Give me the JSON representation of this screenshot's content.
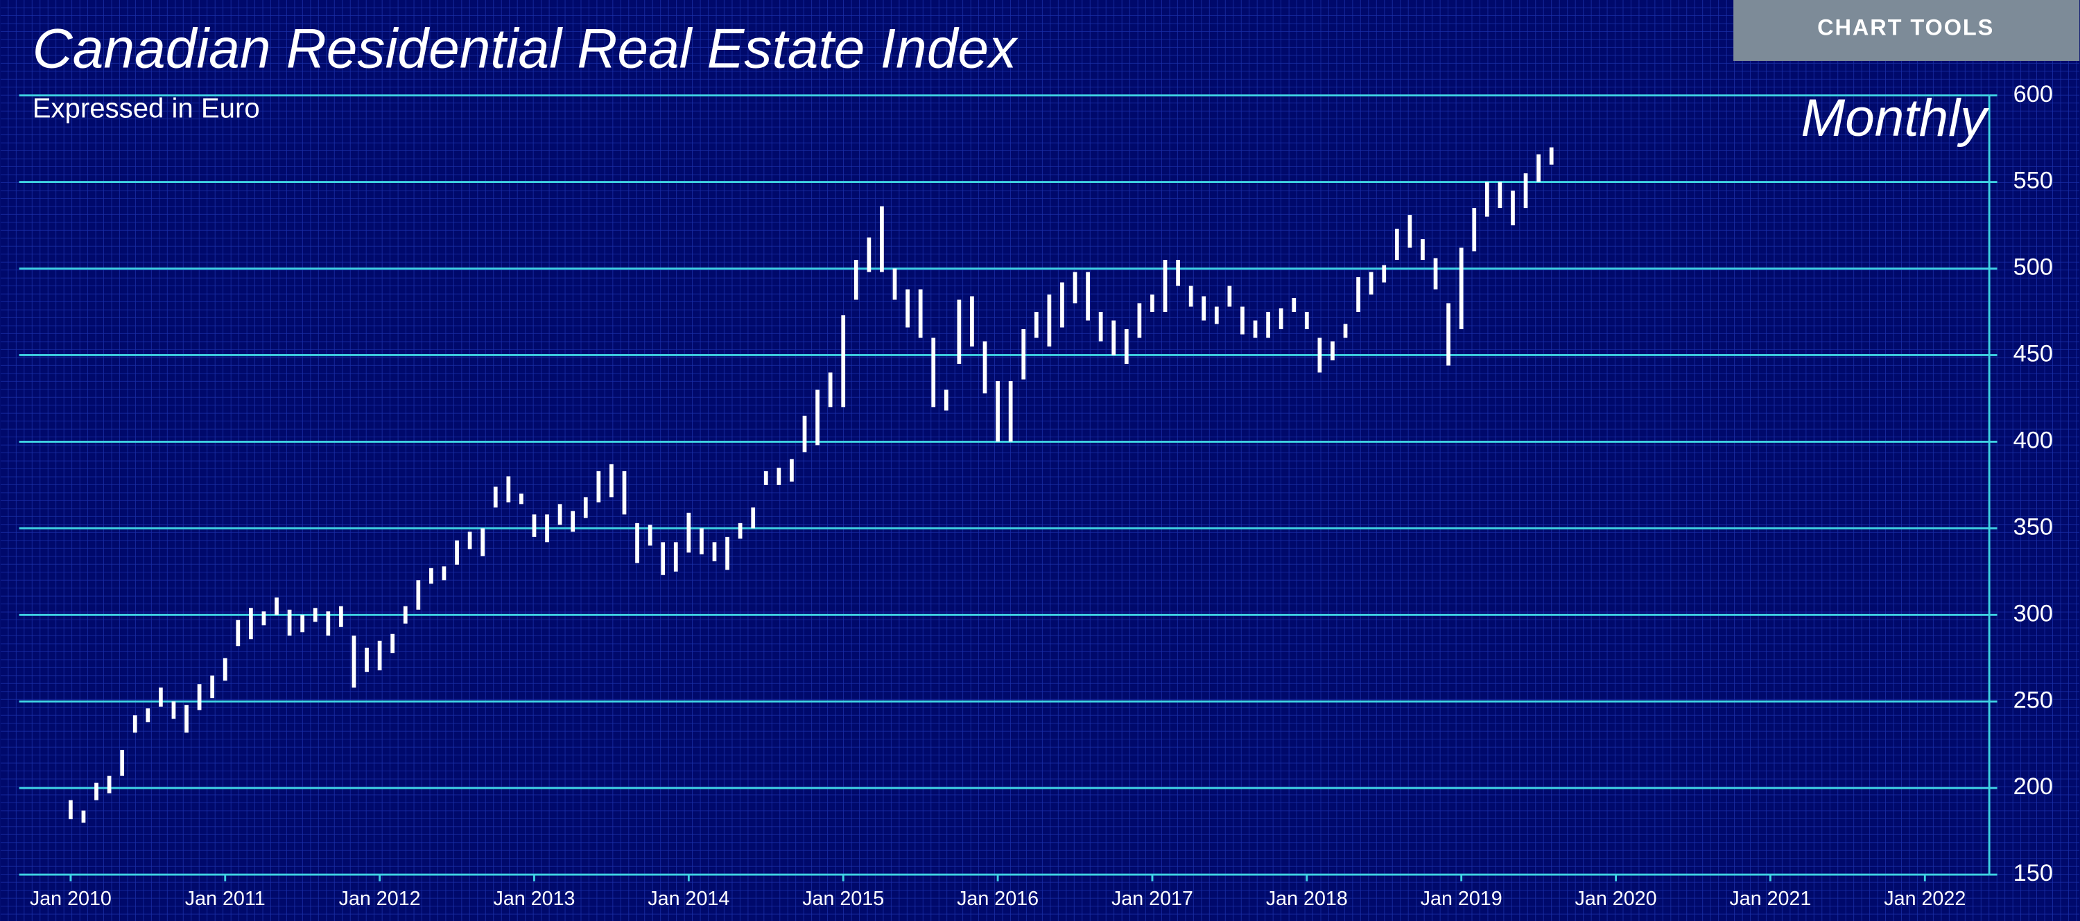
{
  "chart_data": {
    "type": "range-bar",
    "title": "Canadian Residential Real Estate Index",
    "subtitle": "Expressed in Euro",
    "frequency_label": "Monthly",
    "button": "CHART TOOLS",
    "x": [
      "2010-01",
      "2010-02",
      "2010-03",
      "2010-04",
      "2010-05",
      "2010-06",
      "2010-07",
      "2010-08",
      "2010-09",
      "2010-10",
      "2010-11",
      "2010-12",
      "2011-01",
      "2011-02",
      "2011-03",
      "2011-04",
      "2011-05",
      "2011-06",
      "2011-07",
      "2011-08",
      "2011-09",
      "2011-10",
      "2011-11",
      "2011-12",
      "2012-01",
      "2012-02",
      "2012-03",
      "2012-04",
      "2012-05",
      "2012-06",
      "2012-07",
      "2012-08",
      "2012-09",
      "2012-10",
      "2012-11",
      "2012-12",
      "2013-01",
      "2013-02",
      "2013-03",
      "2013-04",
      "2013-05",
      "2013-06",
      "2013-07",
      "2013-08",
      "2013-09",
      "2013-10",
      "2013-11",
      "2013-12",
      "2014-01",
      "2014-02",
      "2014-03",
      "2014-04",
      "2014-05",
      "2014-06",
      "2014-07",
      "2014-08",
      "2014-09",
      "2014-10",
      "2014-11",
      "2014-12",
      "2015-01",
      "2015-02",
      "2015-03",
      "2015-04",
      "2015-05",
      "2015-06",
      "2015-07",
      "2015-08",
      "2015-09",
      "2015-10",
      "2015-11",
      "2015-12",
      "2016-01",
      "2016-02",
      "2016-03",
      "2016-04",
      "2016-05",
      "2016-06",
      "2016-07",
      "2016-08",
      "2016-09",
      "2016-10",
      "2016-11",
      "2016-12",
      "2017-01",
      "2017-02",
      "2017-03",
      "2017-04",
      "2017-05",
      "2017-06",
      "2017-07",
      "2017-08",
      "2017-09",
      "2017-10",
      "2017-11",
      "2017-12",
      "2018-01",
      "2018-02",
      "2018-03",
      "2018-04",
      "2018-05",
      "2018-06",
      "2018-07",
      "2018-08",
      "2018-09",
      "2018-10",
      "2018-11",
      "2018-12",
      "2019-01",
      "2019-02",
      "2019-03",
      "2019-04",
      "2019-05",
      "2019-06",
      "2019-07",
      "2019-08"
    ],
    "high": [
      193,
      187,
      203,
      207,
      222,
      242,
      246,
      258,
      250,
      248,
      260,
      265,
      275,
      297,
      304,
      302,
      310,
      303,
      300,
      304,
      302,
      305,
      288,
      281,
      285,
      289,
      305,
      320,
      327,
      328,
      343,
      348,
      350,
      374,
      380,
      370,
      358,
      358,
      364,
      360,
      368,
      383,
      387,
      383,
      353,
      352,
      342,
      342,
      359,
      350,
      342,
      345,
      353,
      362,
      383,
      385,
      390,
      415,
      430,
      440,
      473,
      505,
      518,
      536,
      500,
      488,
      488,
      460,
      430,
      482,
      484,
      458,
      435,
      435,
      465,
      475,
      485,
      492,
      498,
      498,
      475,
      470,
      465,
      480,
      485,
      505,
      505,
      490,
      484,
      478,
      490,
      478,
      470,
      475,
      477,
      483,
      475,
      460,
      458,
      468,
      495,
      498,
      502,
      523,
      531,
      517,
      506,
      480,
      512,
      535,
      550,
      550,
      545,
      555,
      566,
      570
    ],
    "low": [
      182,
      180,
      193,
      197,
      207,
      232,
      238,
      247,
      240,
      232,
      245,
      252,
      262,
      282,
      286,
      294,
      300,
      288,
      290,
      296,
      288,
      293,
      258,
      267,
      268,
      278,
      295,
      303,
      318,
      320,
      329,
      338,
      334,
      362,
      365,
      364,
      345,
      342,
      352,
      348,
      356,
      365,
      368,
      358,
      330,
      340,
      323,
      325,
      336,
      335,
      331,
      326,
      344,
      350,
      375,
      375,
      377,
      394,
      398,
      420,
      420,
      482,
      498,
      498,
      482,
      466,
      460,
      420,
      418,
      445,
      455,
      428,
      400,
      400,
      436,
      460,
      455,
      466,
      480,
      470,
      458,
      450,
      445,
      460,
      475,
      475,
      490,
      478,
      470,
      468,
      478,
      462,
      460,
      460,
      465,
      475,
      465,
      440,
      447,
      460,
      475,
      485,
      492,
      505,
      512,
      505,
      488,
      444,
      465,
      510,
      530,
      535,
      525,
      535,
      550,
      560
    ],
    "color": "#ffffff",
    "grid_color": "#3fd3e3",
    "xlim": [
      "2009-09",
      "2022-06"
    ],
    "xticks": [
      {
        "value": "2010-01",
        "label": "Jan 2010"
      },
      {
        "value": "2011-01",
        "label": "Jan 2011"
      },
      {
        "value": "2012-01",
        "label": "Jan 2012"
      },
      {
        "value": "2013-01",
        "label": "Jan 2013"
      },
      {
        "value": "2014-01",
        "label": "Jan 2014"
      },
      {
        "value": "2015-01",
        "label": "Jan 2015"
      },
      {
        "value": "2016-01",
        "label": "Jan 2016"
      },
      {
        "value": "2017-01",
        "label": "Jan 2017"
      },
      {
        "value": "2018-01",
        "label": "Jan 2018"
      },
      {
        "value": "2019-01",
        "label": "Jan 2019"
      },
      {
        "value": "2020-01",
        "label": "Jan 2020"
      },
      {
        "value": "2021-01",
        "label": "Jan 2021"
      },
      {
        "value": "2022-01",
        "label": "Jan 2022"
      }
    ],
    "ylim": [
      150,
      600
    ],
    "yticks": [
      150,
      200,
      250,
      300,
      350,
      400,
      450,
      500,
      550,
      600
    ],
    "y_axis_side": "right",
    "grid": true
  }
}
